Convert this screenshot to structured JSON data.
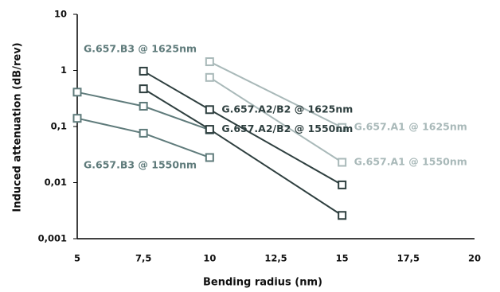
{
  "chart_data": {
    "type": "line",
    "x_label": "Bending radius (nm)",
    "y_label": "Induced attenuation (dB/rev)",
    "xlim": [
      5,
      20
    ],
    "xticks": [
      5,
      {
        "value": 7.5,
        "label": "7,5"
      },
      10,
      {
        "value": 12.5,
        "label": "12,5"
      },
      15,
      {
        "value": 17.5,
        "label": "17,5"
      },
      20
    ],
    "ylim": [
      0.001,
      10
    ],
    "yticks": [
      {
        "value": 0.001,
        "label": "0,001"
      },
      {
        "value": 0.01,
        "label": "0,01"
      },
      {
        "value": 0.1,
        "label": "0,1"
      },
      1,
      10
    ],
    "log_y": true,
    "grid": false,
    "series": [
      {
        "name": "G.657.B3 @ 1625nm",
        "color": "#5f7b7b",
        "x": [
          5,
          7.5,
          10
        ],
        "values": [
          0.41,
          0.23,
          0.087
        ]
      },
      {
        "name": "G.657.B3 @ 1550nm",
        "color": "#5f7b7b",
        "x": [
          5,
          7.5,
          10
        ],
        "values": [
          0.14,
          0.076,
          0.028
        ]
      },
      {
        "name": "G.657.A1 @ 1625nm",
        "color": "#a9b9b9",
        "x": [
          10,
          15
        ],
        "values": [
          1.43,
          0.096
        ]
      },
      {
        "name": "G.657.A1 @ 1550nm",
        "color": "#a9b9b9",
        "x": [
          10,
          15
        ],
        "values": [
          0.75,
          0.023
        ]
      },
      {
        "name": "G.657.A2/B2 @ 1625nm",
        "color": "#2e3f3f",
        "x": [
          7.5,
          10,
          15
        ],
        "values": [
          0.97,
          0.2,
          0.0091
        ]
      },
      {
        "name": "G.657.A2/B2 @ 1550nm",
        "color": "#2e3f3f",
        "x": [
          7.5,
          10,
          15
        ],
        "values": [
          0.47,
          0.089,
          0.0026
        ]
      }
    ]
  }
}
